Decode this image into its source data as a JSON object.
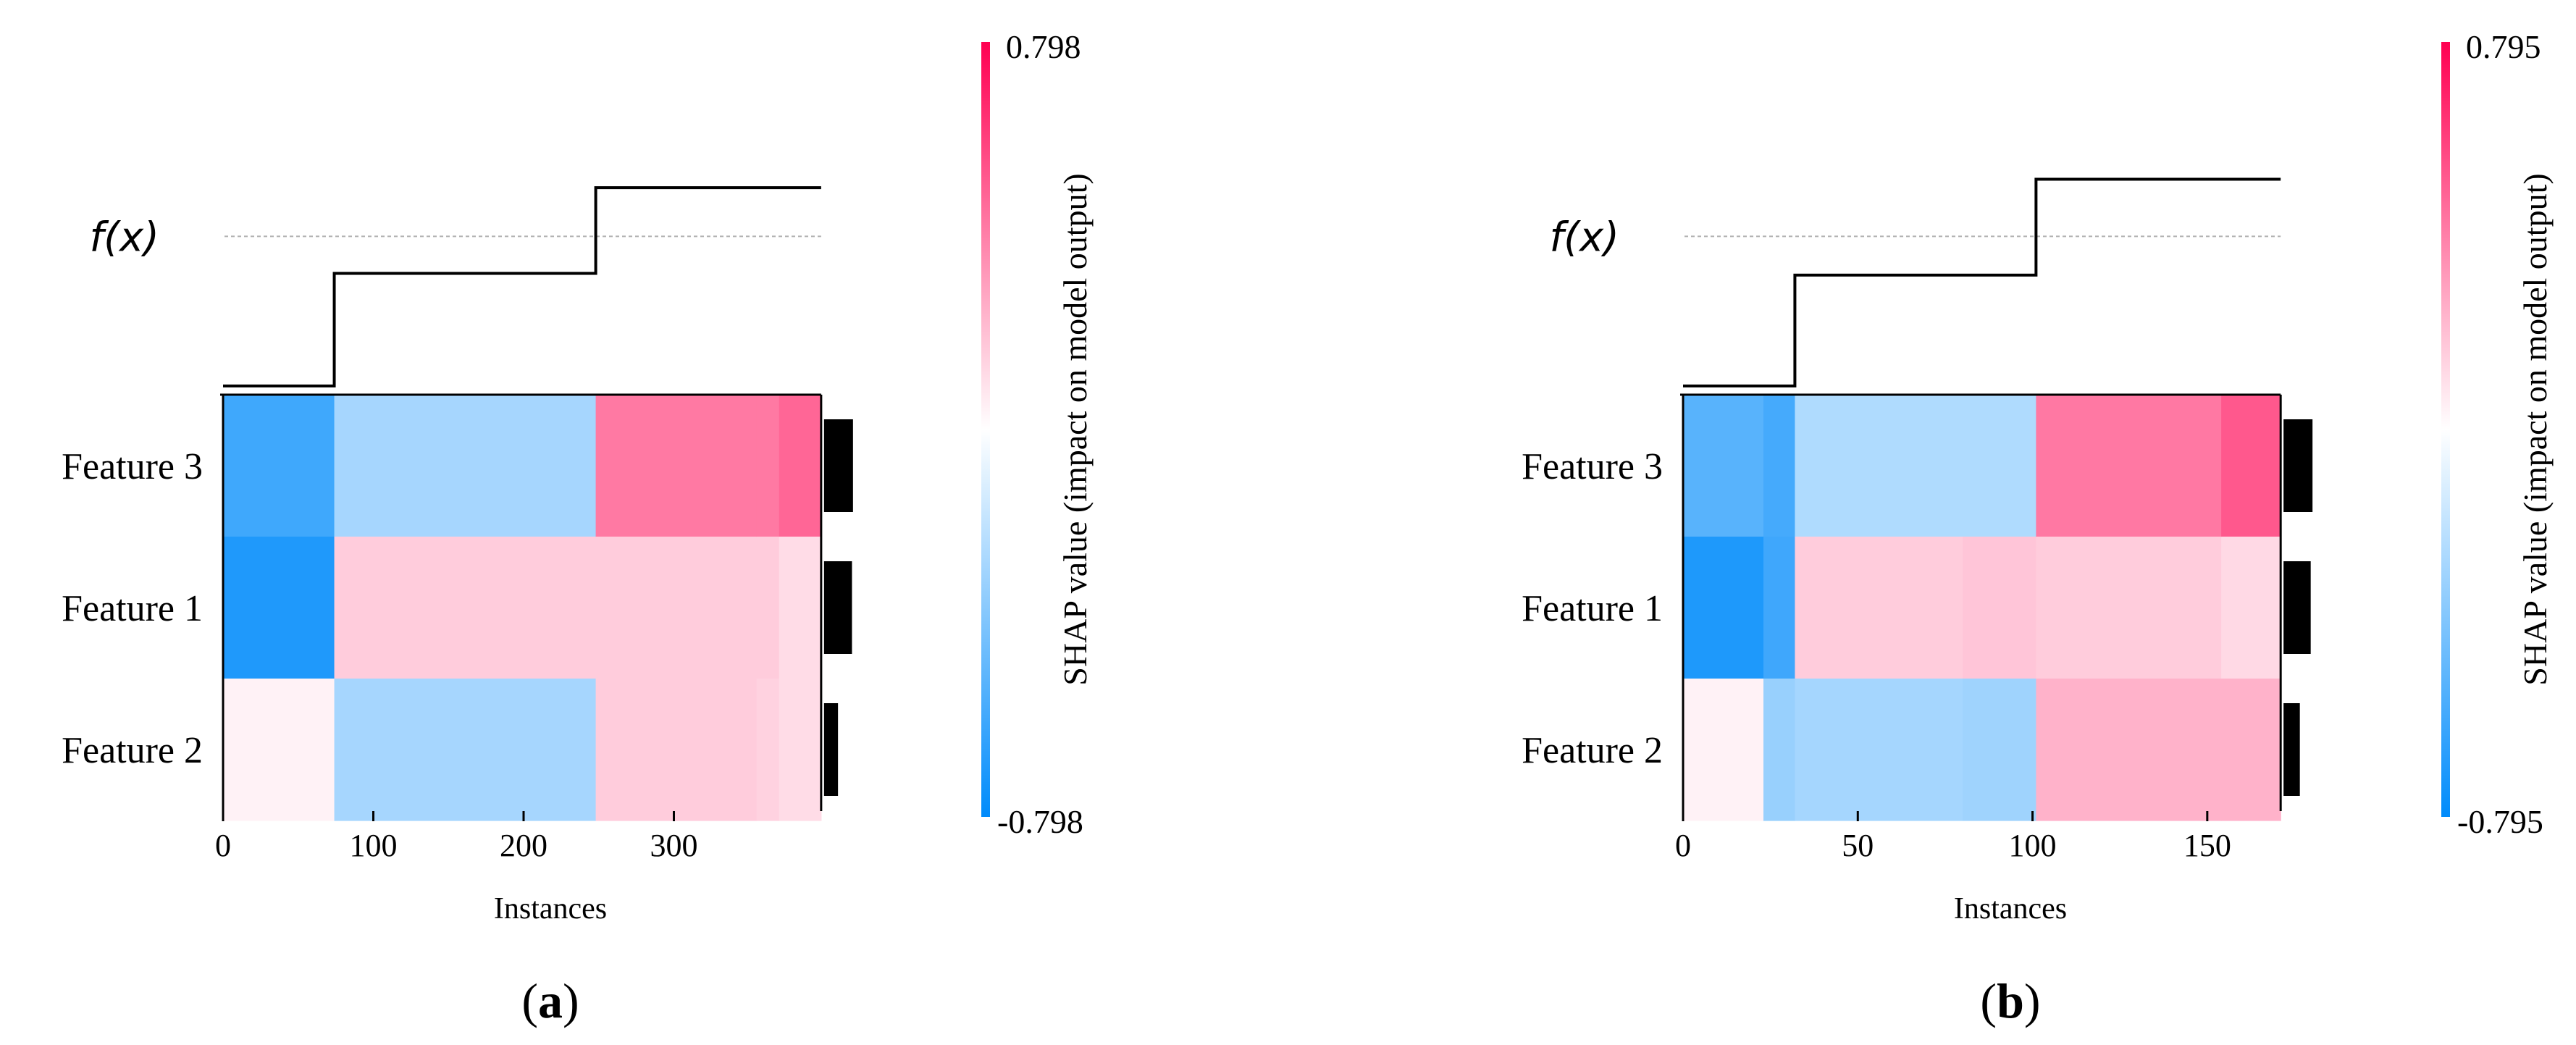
{
  "chart_data": [
    {
      "type": "heatmap",
      "panel_label": "a",
      "fx_label": "f(x)",
      "xlabel": "Instances",
      "xlim": [
        0,
        400
      ],
      "xticks": [
        0,
        100,
        200,
        300
      ],
      "features": [
        "Feature 3",
        "Feature 1",
        "Feature 2"
      ],
      "segments": [
        {
          "start": 0,
          "end": 74,
          "fx": -0.37,
          "values": [
            -0.6,
            -0.7,
            0.04
          ]
        },
        {
          "start": 74,
          "end": 248,
          "fx": 0.3,
          "values": [
            -0.28,
            0.16,
            -0.28
          ]
        },
        {
          "start": 248,
          "end": 355,
          "fx": 0.81,
          "values": [
            0.42,
            0.16,
            0.16
          ]
        },
        {
          "start": 355,
          "end": 370,
          "fx": 0.81,
          "values": [
            0.42,
            0.16,
            0.14
          ]
        },
        {
          "start": 370,
          "end": 398,
          "fx": 0.81,
          "values": [
            0.48,
            0.11,
            0.11
          ]
        }
      ],
      "fx_ref": 0.52,
      "fx_range": [
        -0.4,
        1.0
      ],
      "importance": [
        0.56,
        0.54,
        0.27
      ],
      "importance_max": 0.56,
      "colorbar": {
        "label": "SHAP value (impact on model output)",
        "max": "0.798",
        "min": "-0.798",
        "vmax": 0.798
      },
      "colors": {
        "negative": "#008bfb",
        "positive": "#ff0051"
      }
    },
    {
      "type": "heatmap",
      "panel_label": "b",
      "fx_label": "f(x)",
      "xlabel": "Instances",
      "xlim": [
        0,
        172
      ],
      "xticks": [
        0,
        50,
        100,
        150
      ],
      "features": [
        "Feature 3",
        "Feature 1",
        "Feature 2"
      ],
      "segments": [
        {
          "start": 0,
          "end": 23,
          "fx": -0.37,
          "values": [
            -0.52,
            -0.7,
            0.04
          ]
        },
        {
          "start": 23,
          "end": 32,
          "fx": -0.37,
          "values": [
            -0.58,
            -0.6,
            -0.32
          ]
        },
        {
          "start": 32,
          "end": 80,
          "fx": 0.29,
          "values": [
            -0.25,
            0.16,
            -0.28
          ]
        },
        {
          "start": 80,
          "end": 101,
          "fx": 0.29,
          "values": [
            -0.25,
            0.18,
            -0.3
          ]
        },
        {
          "start": 101,
          "end": 154,
          "fx": 0.86,
          "values": [
            0.42,
            0.16,
            0.24
          ]
        },
        {
          "start": 154,
          "end": 171,
          "fx": 0.86,
          "values": [
            0.52,
            0.12,
            0.24
          ]
        }
      ],
      "fx_ref": 0.52,
      "fx_range": [
        -0.4,
        1.0
      ],
      "importance": [
        0.64,
        0.6,
        0.36
      ],
      "importance_max": 0.64,
      "colorbar": {
        "label": "SHAP value (impact on model output)",
        "max": "0.795",
        "min": "-0.795",
        "vmax": 0.795
      },
      "colors": {
        "negative": "#008bfb",
        "positive": "#ff0051"
      }
    }
  ]
}
